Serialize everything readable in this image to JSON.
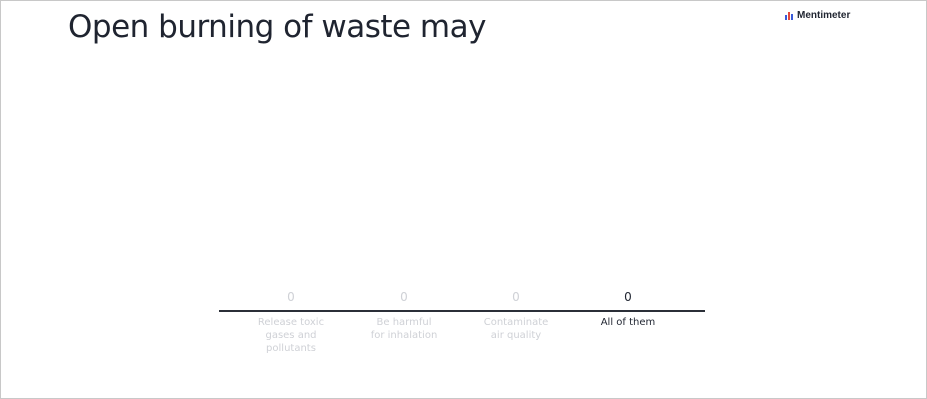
{
  "slide": {
    "title": "Open burning of waste may",
    "brand": "Mentimeter",
    "brand_icon": "mentimeter-logo-icon",
    "colors": {
      "title": "#1f2430",
      "muted": "#cfd1d6",
      "accent_blue": "#3a5bd9",
      "accent_red": "#e2483d"
    }
  },
  "chart_data": {
    "type": "bar",
    "categories": [
      "Release toxic\ngases and\npollutants",
      "Be harmful\nfor inhalation",
      "Contaminate\nair quality",
      "All of them"
    ],
    "values": [
      0,
      0,
      0,
      0
    ],
    "value_labels": [
      "0",
      "0",
      "0",
      "0"
    ],
    "highlighted_index": 3
  }
}
